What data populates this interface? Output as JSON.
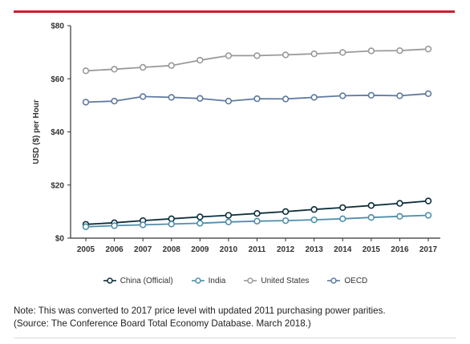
{
  "chart_data": {
    "type": "line",
    "title": "",
    "xlabel": "",
    "ylabel": "USD ($) per Hour",
    "x": [
      "2005",
      "2006",
      "2007",
      "2008",
      "2009",
      "2010",
      "2011",
      "2012",
      "2013",
      "2014",
      "2015",
      "2016",
      "2017"
    ],
    "y_ticks": [
      "$0",
      "$20",
      "$40",
      "$60",
      "$80"
    ],
    "ylim": [
      0,
      80
    ],
    "grid": false,
    "legend_position": "bottom",
    "series": [
      {
        "name": "China (Official)",
        "color": "#0d2f3b",
        "values": [
          5.2,
          5.8,
          6.6,
          7.3,
          8.0,
          8.6,
          9.3,
          10.0,
          10.8,
          11.5,
          12.3,
          13.1,
          14.0
        ]
      },
      {
        "name": "India",
        "color": "#4f8faa",
        "values": [
          4.3,
          4.7,
          5.0,
          5.3,
          5.6,
          6.1,
          6.4,
          6.6,
          6.9,
          7.3,
          7.8,
          8.2,
          8.6
        ]
      },
      {
        "name": "United States",
        "color": "#9a9a9a",
        "values": [
          63.0,
          63.6,
          64.3,
          65.0,
          67.0,
          68.7,
          68.7,
          69.0,
          69.4,
          69.9,
          70.5,
          70.6,
          71.2
        ]
      },
      {
        "name": "OECD",
        "color": "#5f7aa0",
        "values": [
          51.2,
          51.6,
          53.3,
          53.0,
          52.6,
          51.6,
          52.5,
          52.4,
          53.0,
          53.6,
          53.8,
          53.6,
          54.4
        ]
      }
    ]
  },
  "note": {
    "line1": "Note: This was converted to 2017 price level with updated 2011 purchasing power parities.",
    "line2": "(Source: The Conference Board Total Economy Database. March 2018.)"
  },
  "colors": {
    "accent_rule": "#c8202f",
    "axis": "#333333"
  }
}
